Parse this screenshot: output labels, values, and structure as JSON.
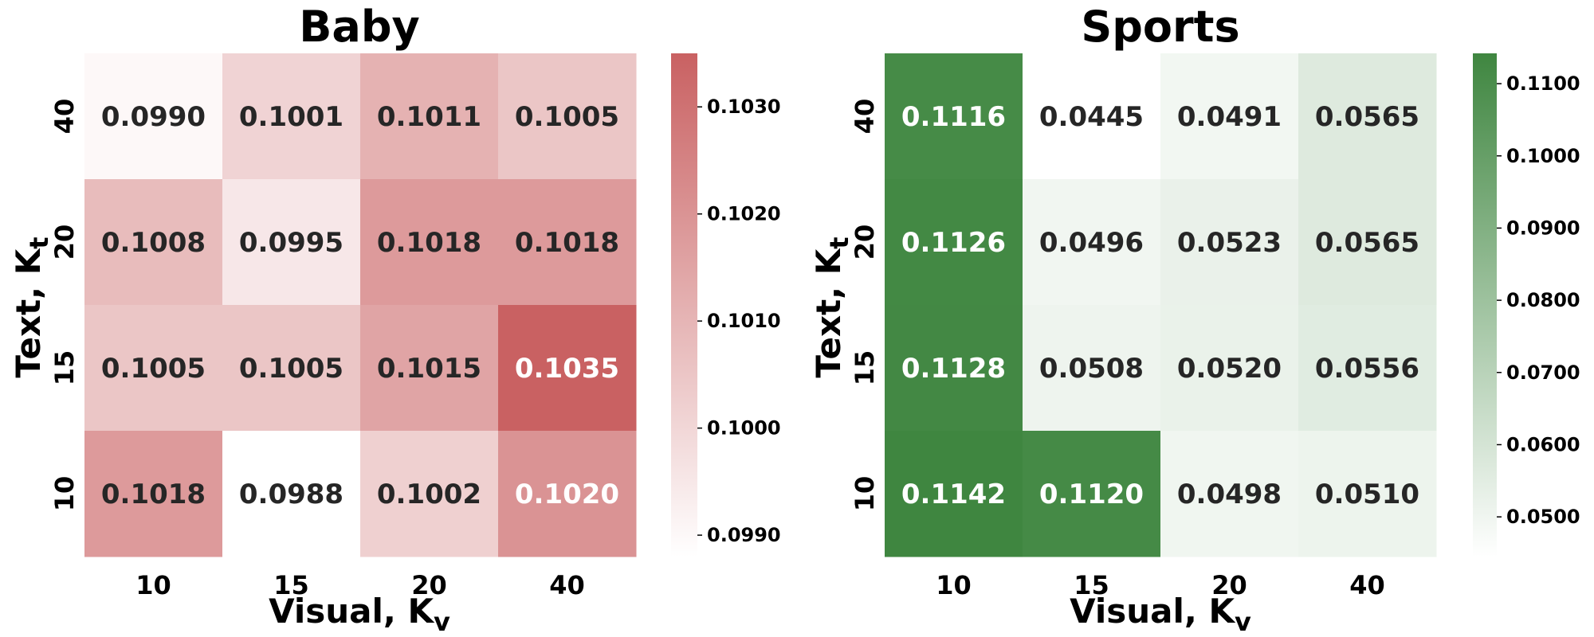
{
  "chart_data": [
    {
      "type": "heatmap",
      "title": "Baby",
      "xlabel": "Visual, K",
      "xlabel_sub": "v",
      "ylabel": "Text, K",
      "ylabel_sub": "t",
      "x_categories": [
        "10",
        "15",
        "20",
        "40"
      ],
      "y_categories": [
        "40",
        "20",
        "15",
        "10"
      ],
      "values": [
        [
          0.099,
          0.1001,
          0.1011,
          0.1005
        ],
        [
          0.1008,
          0.0995,
          0.1018,
          0.1018
        ],
        [
          0.1005,
          0.1005,
          0.1015,
          0.1035
        ],
        [
          0.1018,
          0.0988,
          0.1002,
          0.102
        ]
      ],
      "cell_labels": [
        [
          "0.0990",
          "0.1001",
          "0.1011",
          "0.1005"
        ],
        [
          "0.1008",
          "0.0995",
          "0.1018",
          "0.1018"
        ],
        [
          "0.1005",
          "0.1005",
          "0.1015",
          "0.1035"
        ],
        [
          "0.1018",
          "0.0988",
          "0.1002",
          "0.1020"
        ]
      ],
      "colorbar": {
        "min": 0.0988,
        "max": 0.1035,
        "ticks": [
          0.099,
          0.1,
          0.101,
          0.102,
          0.103
        ],
        "tick_labels": [
          "0.0990",
          "0.1000",
          "0.1010",
          "0.1020",
          "0.1030"
        ],
        "color_low": "#ffffff",
        "color_high": "#c96162"
      },
      "label_light_threshold": 0.1019
    },
    {
      "type": "heatmap",
      "title": "Sports",
      "xlabel": "Visual, K",
      "xlabel_sub": "v",
      "ylabel": "Text, K",
      "ylabel_sub": "t",
      "x_categories": [
        "10",
        "15",
        "20",
        "40"
      ],
      "y_categories": [
        "40",
        "20",
        "15",
        "10"
      ],
      "values": [
        [
          0.1116,
          0.0445,
          0.0491,
          0.0565
        ],
        [
          0.1126,
          0.0496,
          0.0523,
          0.0565
        ],
        [
          0.1128,
          0.0508,
          0.052,
          0.0556
        ],
        [
          0.1142,
          0.112,
          0.0498,
          0.051
        ]
      ],
      "cell_labels": [
        [
          "0.1116",
          "0.0445",
          "0.0491",
          "0.0565"
        ],
        [
          "0.1126",
          "0.0496",
          "0.0523",
          "0.0565"
        ],
        [
          "0.1128",
          "0.0508",
          "0.0520",
          "0.0556"
        ],
        [
          "0.1142",
          "0.1120",
          "0.0498",
          "0.0510"
        ]
      ],
      "colorbar": {
        "min": 0.0445,
        "max": 0.1142,
        "ticks": [
          0.05,
          0.06,
          0.07,
          0.08,
          0.09,
          0.1,
          0.11
        ],
        "tick_labels": [
          "0.0500",
          "0.0600",
          "0.0700",
          "0.0800",
          "0.0900",
          "0.1000",
          "0.1100"
        ],
        "color_low": "#ffffff",
        "color_high": "#3f8640"
      },
      "label_light_threshold": 0.09
    }
  ]
}
